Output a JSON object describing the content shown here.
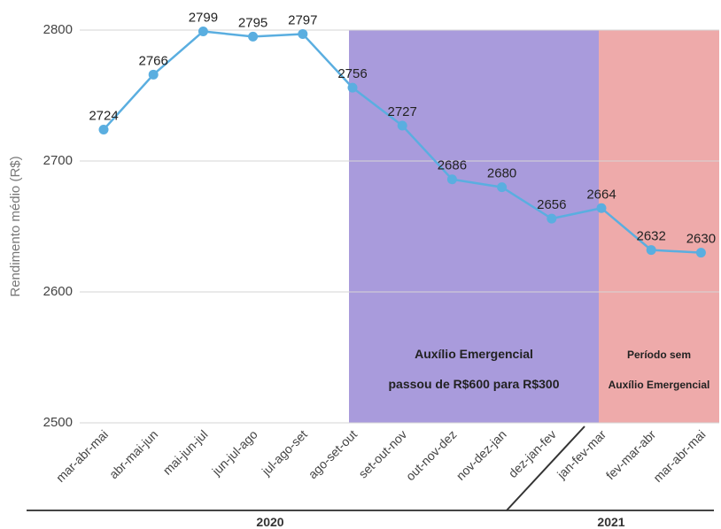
{
  "chart_data": {
    "type": "line",
    "ylabel": "Rendimento médio (R$)",
    "ylim": [
      2500,
      2800
    ],
    "yticks": [
      2500,
      2600,
      2700,
      2800
    ],
    "grid": true,
    "categories": [
      "mar-abr-mai",
      "abr-mai-jun",
      "mai-jun-jul",
      "jun-jul-ago",
      "jul-ago-set",
      "ago-set-out",
      "set-out-nov",
      "out-nov-dez",
      "nov-dez-jan",
      "dez-jan-fev",
      "jan-fev-mar",
      "fev-mar-abr",
      "mar-abr-mai"
    ],
    "values": [
      2724,
      2766,
      2799,
      2795,
      2797,
      2756,
      2727,
      2686,
      2680,
      2656,
      2664,
      2632,
      2630
    ],
    "line_color": "#5aaee0",
    "regions": [
      {
        "from_index": 5,
        "to_index": 10,
        "color": "#a99bdc",
        "lines": [
          "Auxílio Emergencial",
          "passou de R$600 para R$300"
        ]
      },
      {
        "from_index": 10,
        "to_index": 12,
        "color": "#eeaaaa",
        "lines": [
          "Período sem",
          "Auxílio Emergencial"
        ]
      }
    ],
    "years": [
      {
        "label": "2020",
        "from_index": 0,
        "to_index": 9
      },
      {
        "label": "2021",
        "from_index": 10,
        "to_index": 12
      }
    ]
  }
}
